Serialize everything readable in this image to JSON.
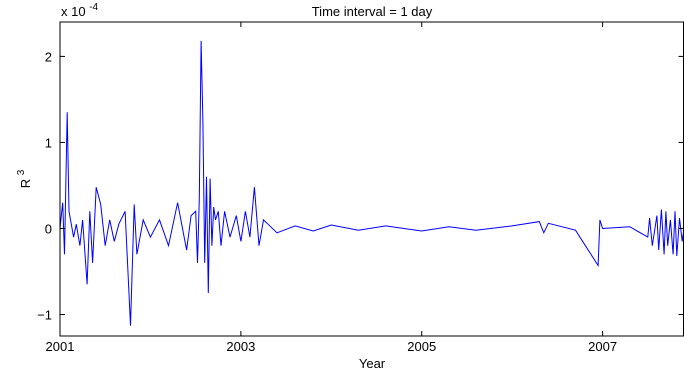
{
  "chart_data": {
    "type": "line",
    "title": "Time interval = 1 day",
    "xlabel": "Year",
    "ylabel": "R",
    "ylabel_superscript": "3",
    "y_multiplier_base": "x 10",
    "y_multiplier_exponent": "-4",
    "xlim": [
      2001,
      2007.9
    ],
    "ylim": [
      -1.25,
      2.4
    ],
    "x_ticks": [
      2001,
      2003,
      2005,
      2007
    ],
    "x_tick_labels": [
      "2001",
      "2003",
      "2005",
      "2007"
    ],
    "y_ticks": [
      -1,
      0,
      1,
      2
    ],
    "y_tick_labels": [
      "−1",
      "0",
      "1",
      "2"
    ],
    "grid": false,
    "line_color": "#0000ff",
    "series": [
      {
        "x": [
          2001.0,
          2001.03,
          2001.05,
          2001.08,
          2001.1,
          2001.15,
          2001.18,
          2001.22,
          2001.25,
          2001.3,
          2001.33,
          2001.36,
          2001.4,
          2001.45,
          2001.5,
          2001.55,
          2001.6,
          2001.65,
          2001.72,
          2001.78,
          2001.82,
          2001.85,
          2001.92,
          2002.0,
          2002.1,
          2002.2,
          2002.3,
          2002.4,
          2002.45,
          2002.5,
          2002.52,
          2002.54,
          2002.56,
          2002.58,
          2002.6,
          2002.62,
          2002.64,
          2002.66,
          2002.68,
          2002.7,
          2002.72,
          2002.75,
          2002.78,
          2002.82,
          2002.88,
          2002.95,
          2003.0,
          2003.05,
          2003.1,
          2003.15,
          2003.2,
          2003.25,
          2003.3,
          2003.4,
          2003.6,
          2003.8,
          2004.0,
          2004.3,
          2004.6,
          2005.0,
          2005.3,
          2005.6,
          2006.0,
          2006.3,
          2006.35,
          2006.4,
          2006.7,
          2006.95,
          2006.97,
          2007.0,
          2007.3,
          2007.5,
          2007.52,
          2007.55,
          2007.6,
          2007.62,
          2007.65,
          2007.68,
          2007.7,
          2007.72,
          2007.75,
          2007.78,
          2007.8,
          2007.82,
          2007.85,
          2007.88,
          2007.9
        ],
        "y": [
          0.0,
          0.3,
          -0.3,
          1.35,
          0.2,
          -0.1,
          0.05,
          -0.2,
          0.1,
          -0.65,
          0.2,
          -0.4,
          0.48,
          0.28,
          -0.2,
          0.1,
          -0.15,
          0.05,
          0.2,
          -1.13,
          0.28,
          -0.3,
          0.1,
          -0.1,
          0.1,
          -0.2,
          0.3,
          -0.25,
          0.15,
          0.2,
          -0.4,
          0.35,
          2.18,
          1.24,
          -0.4,
          0.6,
          -0.75,
          0.58,
          -0.2,
          0.25,
          0.1,
          0.2,
          -0.2,
          0.2,
          -0.1,
          0.15,
          -0.15,
          0.2,
          -0.1,
          0.48,
          -0.2,
          0.1,
          0.05,
          -0.05,
          0.03,
          -0.03,
          0.04,
          -0.02,
          0.03,
          -0.03,
          0.02,
          -0.02,
          0.03,
          0.08,
          -0.05,
          0.06,
          -0.02,
          -0.43,
          0.1,
          0.0,
          0.02,
          -0.1,
          0.12,
          -0.2,
          0.15,
          -0.25,
          0.22,
          -0.3,
          0.2,
          -0.2,
          0.1,
          -0.3,
          0.2,
          -0.32,
          0.12,
          -0.15,
          0.0
        ]
      }
    ]
  }
}
